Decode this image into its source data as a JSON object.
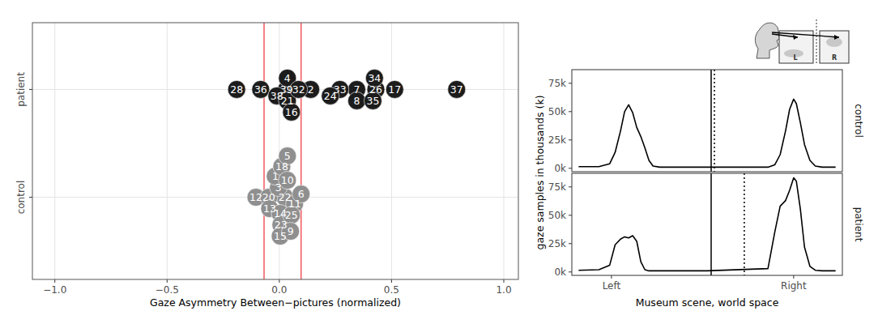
{
  "chart_data": [
    {
      "type": "scatter",
      "x_label": "Gaze Asymmetry Between−pictures (normalized)",
      "categories": [
        "patient",
        "control"
      ],
      "xlim": [
        -1.1,
        1.065
      ],
      "xticks": [
        {
          "value": -1,
          "label": "−1.0"
        },
        {
          "value": -0.5,
          "label": "−0.5"
        },
        {
          "value": 0,
          "label": "0.0"
        },
        {
          "value": 0.5,
          "label": "0.5"
        },
        {
          "value": 1,
          "label": "1.0"
        }
      ],
      "grid": true,
      "reference_lines": [
        -0.068,
        0.097
      ],
      "series": [
        {
          "name": "patient",
          "color": "#1c1c1c",
          "marker": "circle",
          "labels": [
            "28",
            "36",
            "39",
            "2",
            "37",
            "17",
            "7",
            "33",
            "24",
            "26",
            "38",
            "8",
            "21",
            "35",
            "4",
            "34",
            "16",
            "32"
          ],
          "x": [
            -0.19,
            -0.083,
            0.032,
            0.14,
            0.79,
            0.514,
            0.345,
            0.27,
            0.227,
            0.43,
            -0.011,
            0.345,
            0.036,
            0.417,
            0.036,
            0.424,
            0.054,
            0.086
          ]
        },
        {
          "name": "control",
          "color": "#8f8f8f",
          "marker": "circle",
          "labels": [
            "12",
            "22",
            "20",
            "11",
            "13",
            "6",
            "3",
            "1",
            "14",
            "23",
            "18",
            "15",
            "10",
            "5",
            "25",
            "9"
          ],
          "x": [
            -0.104,
            0.025,
            -0.047,
            0.068,
            -0.043,
            0.097,
            -0.004,
            -0.018,
            0.004,
            0.007,
            0.011,
            0.004,
            0.036,
            0.036,
            0.054,
            0.05
          ]
        }
      ]
    },
    {
      "type": "line",
      "y_label": "gaze samples in thousands (k)",
      "x_label": "Museum scene, world space",
      "xlim": [
        -1,
        1
      ],
      "xticks": [
        {
          "value": -0.707,
          "label": "Left"
        },
        {
          "value": 0.64,
          "label": "Right"
        }
      ],
      "ylim": [
        -3000,
        87000
      ],
      "yticks": [
        {
          "value": 0,
          "label": "0k"
        },
        {
          "value": 25000,
          "label": "25k"
        },
        {
          "value": 50000,
          "label": "50k"
        },
        {
          "value": 75000,
          "label": "75k"
        }
      ],
      "color": "#000000",
      "divider_x": 0.03,
      "icon_labels": [
        "L",
        "R"
      ],
      "x": [
        -0.95,
        -0.8,
        -0.72,
        -0.68,
        -0.64,
        -0.61,
        -0.58,
        -0.55,
        -0.52,
        -0.49,
        -0.46,
        -0.43,
        -0.4,
        -0.35,
        0,
        0.45,
        0.5,
        0.54,
        0.58,
        0.61,
        0.64,
        0.66,
        0.69,
        0.72,
        0.76,
        0.8,
        0.85,
        0.95
      ],
      "series": [
        {
          "name": "control",
          "mean_x": 0.054,
          "values": [
            1500,
            1500,
            4000,
            14000,
            33000,
            50000,
            56000,
            49000,
            36000,
            28000,
            18000,
            7000,
            2000,
            1000,
            1000,
            1000,
            3000,
            12000,
            33000,
            52000,
            61000,
            57000,
            40000,
            21000,
            7000,
            2000,
            1000,
            1000
          ]
        },
        {
          "name": "patient",
          "mean_x": 0.275,
          "values": [
            1500,
            2000,
            6000,
            24000,
            29000,
            31000,
            30000,
            32000,
            27000,
            9000,
            2000,
            1000,
            1000,
            1000,
            1000,
            3000,
            35000,
            58000,
            63000,
            72000,
            83000,
            80000,
            55000,
            22000,
            5000,
            1500,
            1000,
            1000
          ]
        }
      ]
    }
  ]
}
